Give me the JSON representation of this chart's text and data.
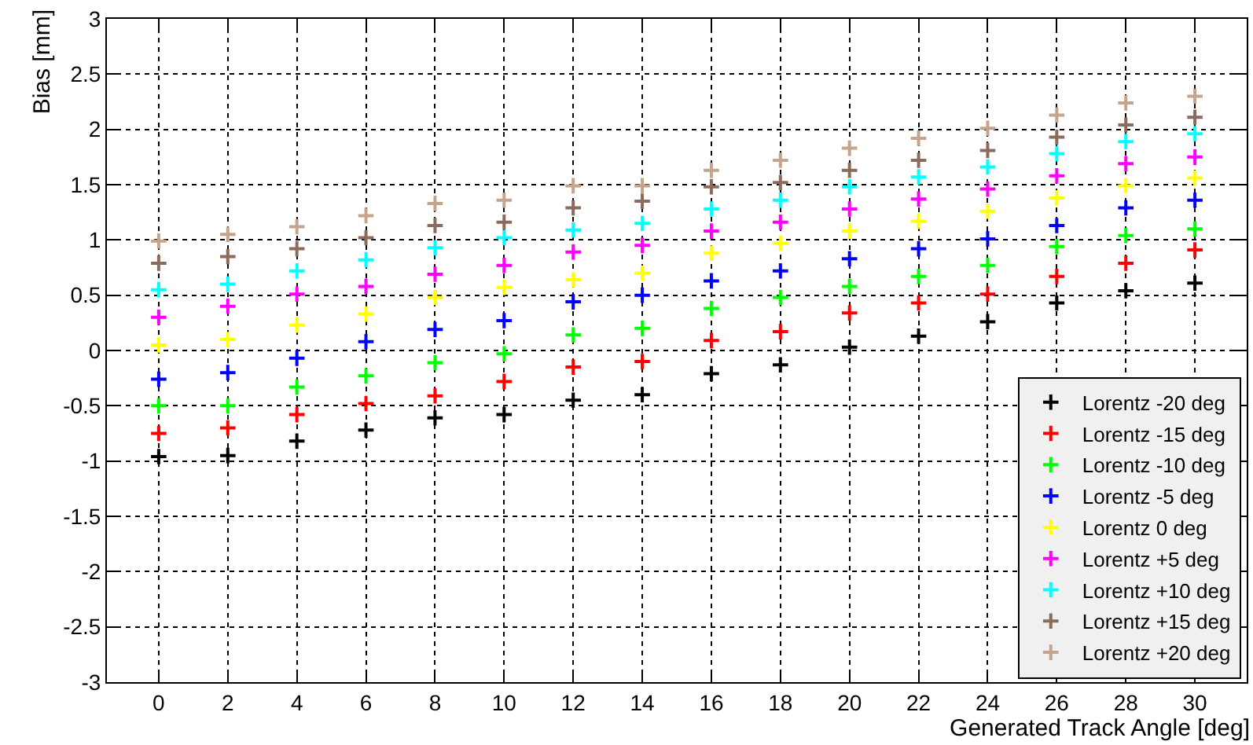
{
  "chart_data": {
    "type": "scatter",
    "xlabel": "Generated Track Angle [deg]",
    "ylabel": "Bias [mm]",
    "x": [
      0,
      2,
      4,
      6,
      8,
      10,
      12,
      14,
      16,
      18,
      20,
      22,
      24,
      26,
      28,
      30
    ],
    "xlim": [
      -1.5,
      31.5
    ],
    "xticks": [
      0,
      2,
      4,
      6,
      8,
      10,
      12,
      14,
      16,
      18,
      20,
      22,
      24,
      26,
      28,
      30
    ],
    "ylim": [
      -3,
      3
    ],
    "yticks": [
      -3,
      -2.5,
      -2,
      -1.5,
      -1,
      -0.5,
      0,
      0.5,
      1,
      1.5,
      2,
      2.5,
      3
    ],
    "grid": true,
    "legend": "bottom right",
    "marker": "cross",
    "series": [
      {
        "name": "Lorentz -20 deg",
        "color": "#000000",
        "values": [
          -0.96,
          -0.95,
          -0.82,
          -0.72,
          -0.61,
          -0.58,
          -0.45,
          -0.4,
          -0.21,
          -0.13,
          0.03,
          0.13,
          0.26,
          0.43,
          0.54,
          0.61
        ]
      },
      {
        "name": "Lorentz -15 deg",
        "color": "#ff0000",
        "values": [
          -0.75,
          -0.7,
          -0.58,
          -0.48,
          -0.41,
          -0.28,
          -0.15,
          -0.1,
          0.09,
          0.17,
          0.34,
          0.43,
          0.51,
          0.67,
          0.79,
          0.91
        ]
      },
      {
        "name": "Lorentz -10 deg",
        "color": "#00ff00",
        "values": [
          -0.5,
          -0.5,
          -0.33,
          -0.23,
          -0.11,
          -0.03,
          0.14,
          0.2,
          0.38,
          0.48,
          0.58,
          0.67,
          0.77,
          0.94,
          1.04,
          1.1
        ]
      },
      {
        "name": "Lorentz -5 deg",
        "color": "#0000ff",
        "values": [
          -0.26,
          -0.2,
          -0.07,
          0.08,
          0.19,
          0.27,
          0.44,
          0.5,
          0.63,
          0.72,
          0.83,
          0.92,
          1.01,
          1.13,
          1.29,
          1.36
        ]
      },
      {
        "name": "Lorentz 0 deg",
        "color": "#ffff00",
        "values": [
          0.05,
          0.1,
          0.23,
          0.33,
          0.48,
          0.57,
          0.64,
          0.7,
          0.88,
          0.97,
          1.08,
          1.17,
          1.26,
          1.38,
          1.49,
          1.56
        ]
      },
      {
        "name": "Lorentz +5 deg",
        "color": "#ff00ff",
        "values": [
          0.3,
          0.4,
          0.51,
          0.58,
          0.69,
          0.77,
          0.89,
          0.95,
          1.08,
          1.16,
          1.28,
          1.37,
          1.46,
          1.58,
          1.69,
          1.75
        ]
      },
      {
        "name": "Lorentz +10 deg",
        "color": "#00ffff",
        "values": [
          0.55,
          0.6,
          0.72,
          0.82,
          0.93,
          1.02,
          1.09,
          1.15,
          1.28,
          1.36,
          1.48,
          1.57,
          1.66,
          1.78,
          1.89,
          1.96
        ]
      },
      {
        "name": "Lorentz +15 deg",
        "color": "#8b6b5c",
        "values": [
          0.79,
          0.85,
          0.92,
          1.02,
          1.13,
          1.16,
          1.29,
          1.35,
          1.48,
          1.52,
          1.63,
          1.72,
          1.81,
          1.93,
          2.04,
          2.11
        ]
      },
      {
        "name": "Lorentz +20 deg",
        "color": "#c4a48c",
        "values": [
          0.99,
          1.05,
          1.12,
          1.22,
          1.33,
          1.36,
          1.49,
          1.49,
          1.63,
          1.72,
          1.83,
          1.92,
          2.01,
          2.13,
          2.24,
          2.3
        ]
      }
    ]
  }
}
